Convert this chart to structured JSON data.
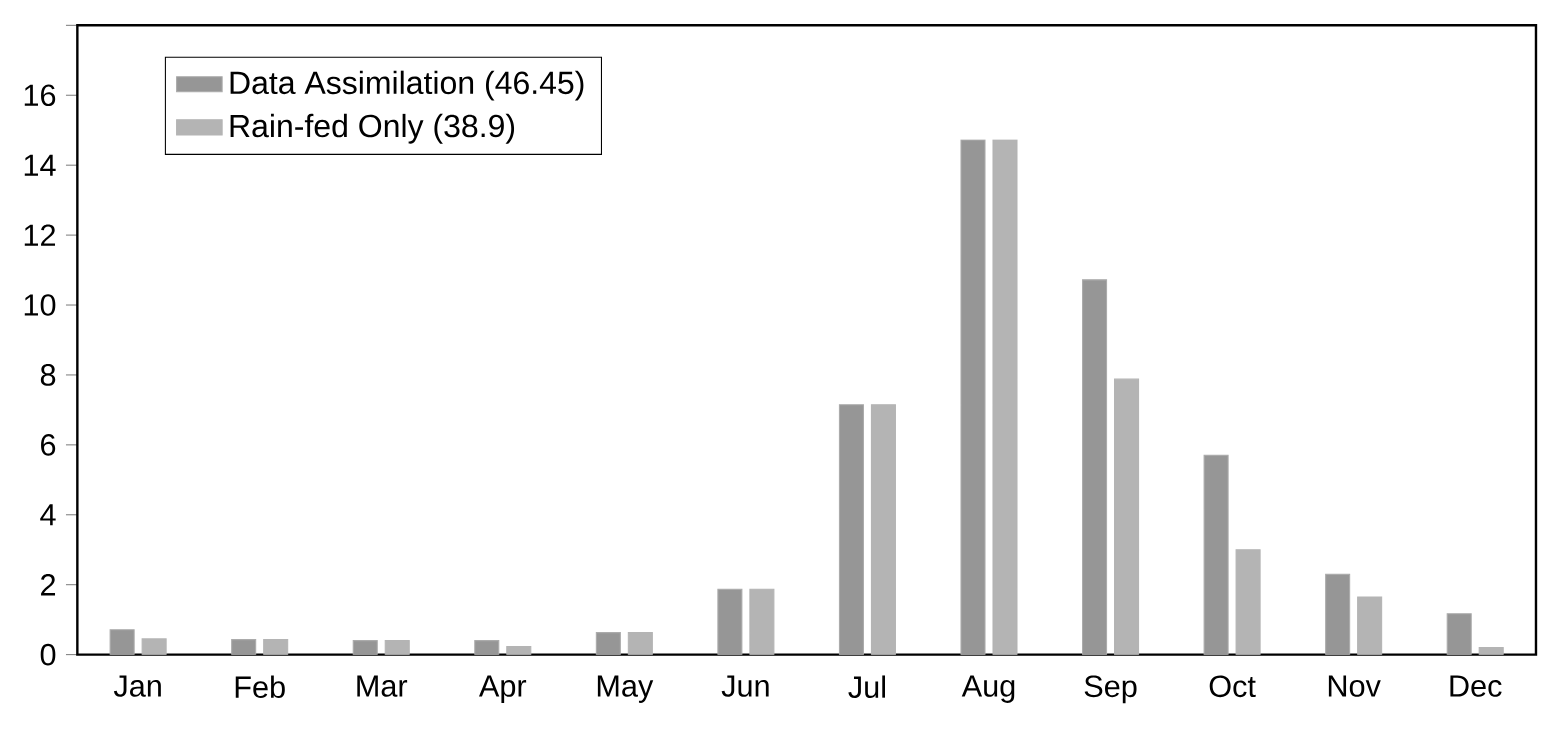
{
  "chart_data": {
    "type": "bar",
    "categories": [
      "Jan",
      "Feb",
      "Mar",
      "Apr",
      "May",
      "Jun",
      "Jul",
      "Aug",
      "Sep",
      "Oct",
      "Nov",
      "Dec"
    ],
    "series": [
      {
        "name": "Data Assimilation (46.45)",
        "color": "#969696",
        "values": [
          0.71,
          0.43,
          0.4,
          0.4,
          0.63,
          1.87,
          7.15,
          14.72,
          10.72,
          5.7,
          2.3,
          1.17
        ]
      },
      {
        "name": "Rain-fed Only (38.9)",
        "color": "#b4b4b4",
        "values": [
          0.45,
          0.43,
          0.4,
          0.23,
          0.63,
          1.87,
          7.15,
          14.72,
          7.88,
          3.0,
          1.65,
          0.2
        ]
      }
    ],
    "ylim": [
      0,
      18
    ],
    "yticks": [
      0,
      2,
      4,
      6,
      8,
      10,
      12,
      14,
      16,
      {
        "value": 18,
        "label": null
      }
    ],
    "legend": "top left"
  }
}
